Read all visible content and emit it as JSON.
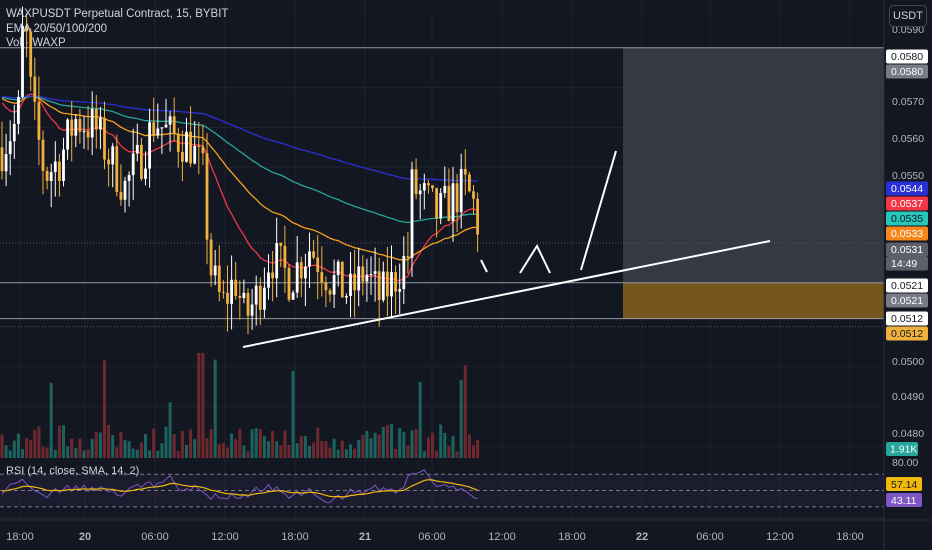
{
  "legend": {
    "symbol": "WAXPUSDT Perpetual Contract, 15, BYBIT",
    "ema": "EMA 20/50/100/200",
    "vol": "Vol · WAXP"
  },
  "unit_button": "USDT",
  "rsi_title": "RSI (14, close, SMA, 14, 2)",
  "colors": {
    "background": "#131722",
    "up_candle": "#ffffff",
    "down_candle": "#f0b03d",
    "ema20": "#f23645",
    "ema50": "#f7a21b",
    "ema100": "#26a69a",
    "ema200": "#2a2fd6",
    "rsi_line": "#7e57c2",
    "rsi_ma": "#f0b90b",
    "drawing": "#ffffff",
    "zone_upper": "#3a3d48",
    "zone_lower": "#7a5a1e"
  },
  "chart_data": {
    "type": "candlestick",
    "price_axis": {
      "ticks": [
        "0.0590",
        "0.0570",
        "0.0560",
        "0.0550",
        "0.0500",
        "0.0490",
        "0.0480"
      ],
      "ylim": [
        0.0477,
        0.0592
      ]
    },
    "time_axis": {
      "ticks": [
        "18:00",
        "20",
        "06:00",
        "12:00",
        "18:00",
        "21",
        "06:00",
        "12:00",
        "18:00",
        "22",
        "06:00",
        "12:00",
        "18:00"
      ]
    },
    "rsi_axis": {
      "ticks": [
        "80.00"
      ]
    },
    "price_labels": [
      {
        "text": "0.0580",
        "style": "white"
      },
      {
        "text": "0.0580",
        "style": "gray"
      },
      {
        "text": "0.0544",
        "style": "ema200"
      },
      {
        "text": "0.0537",
        "style": "ema20"
      },
      {
        "text": "0.0535",
        "style": "ema100"
      },
      {
        "text": "0.0533",
        "style": "ema50"
      },
      {
        "text": "0.0531",
        "style": "last"
      },
      {
        "text": "14:49",
        "style": "last"
      },
      {
        "text": "0.0521",
        "style": "white"
      },
      {
        "text": "0.0521",
        "style": "gray"
      },
      {
        "text": "0.0512",
        "style": "white"
      },
      {
        "text": "0.0512",
        "style": "amber"
      }
    ],
    "volume_label": "1.91K",
    "rsi_labels": [
      "57.14",
      "43.11"
    ],
    "horizontal_levels": [
      0.058,
      0.0531,
      0.0521,
      0.0512,
      0.051
    ],
    "trendline": {
      "from": [
        0.051
      ],
      "to": [
        0.0531
      ]
    },
    "zones": [
      {
        "top": 0.058,
        "bottom": 0.0521,
        "kind": "upper"
      },
      {
        "top": 0.0521,
        "bottom": 0.0512,
        "kind": "lower"
      }
    ],
    "current": {
      "price": 0.0531,
      "rsi": 43.11,
      "rsi_ma": 57.14
    }
  }
}
